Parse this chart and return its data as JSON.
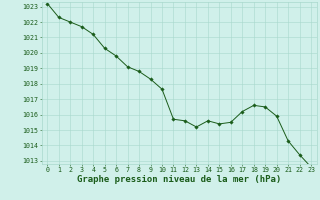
{
  "x": [
    0,
    1,
    2,
    3,
    4,
    5,
    6,
    7,
    8,
    9,
    10,
    11,
    12,
    13,
    14,
    15,
    16,
    17,
    18,
    19,
    20,
    21,
    22,
    23
  ],
  "y": [
    1023.2,
    1022.3,
    1022.0,
    1021.7,
    1021.2,
    1020.3,
    1019.8,
    1019.1,
    1018.8,
    1018.3,
    1017.65,
    1015.7,
    1015.6,
    1015.2,
    1015.6,
    1015.4,
    1015.5,
    1016.2,
    1016.6,
    1016.5,
    1015.9,
    1014.3,
    1013.4,
    1012.6
  ],
  "ylim_min": 1013,
  "ylim_max": 1023,
  "yticks": [
    1013,
    1014,
    1015,
    1016,
    1017,
    1018,
    1019,
    1020,
    1021,
    1022,
    1023
  ],
  "xticks": [
    0,
    1,
    2,
    3,
    4,
    5,
    6,
    7,
    8,
    9,
    10,
    11,
    12,
    13,
    14,
    15,
    16,
    17,
    18,
    19,
    20,
    21,
    22,
    23
  ],
  "line_color": "#1a5c1a",
  "marker_color": "#1a5c1a",
  "bg_color": "#d0f0ea",
  "grid_color": "#a8d8cc",
  "xlabel": "Graphe pression niveau de la mer (hPa)",
  "xlabel_color": "#1a5c1a",
  "tick_color": "#1a5c1a",
  "tick_fontsize": 4.8,
  "xlabel_fontsize": 6.5,
  "xlabel_bold": true
}
